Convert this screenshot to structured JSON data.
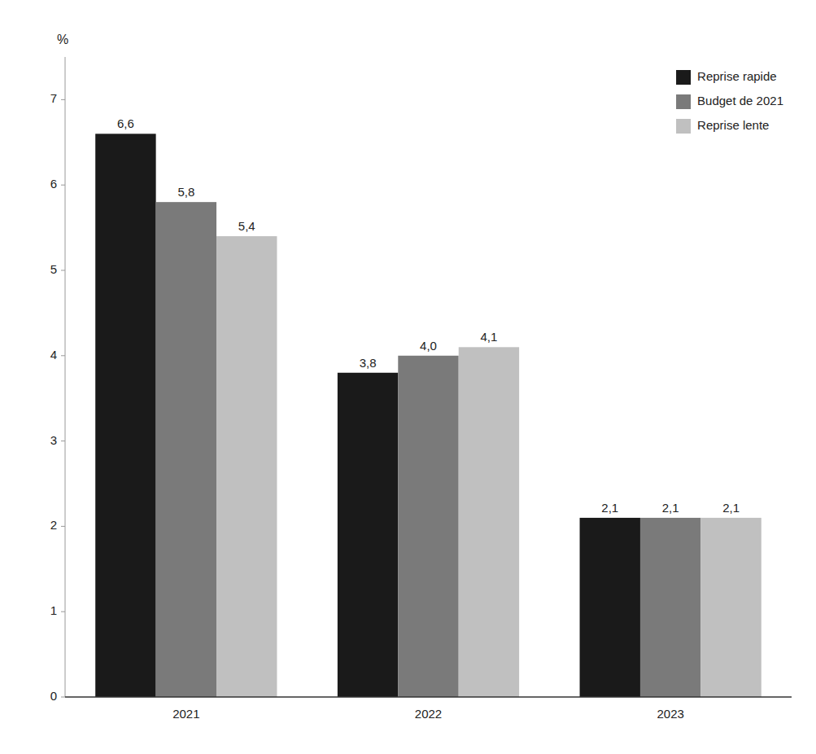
{
  "chart_data": {
    "type": "bar",
    "ylabel": "%",
    "categories": [
      "2021",
      "2022",
      "2023"
    ],
    "series": [
      {
        "name": "Reprise rapide",
        "color": "#1a1a1a",
        "values": [
          6.6,
          3.8,
          2.1
        ],
        "value_labels": [
          "6,6",
          "3,8",
          "2,1"
        ]
      },
      {
        "name": "Budget de 2021",
        "color": "#7a7a7a",
        "values": [
          5.8,
          4.0,
          2.1
        ],
        "value_labels": [
          "5,8",
          "4,0",
          "2,1"
        ]
      },
      {
        "name": "Reprise lente",
        "color": "#c0c0c0",
        "values": [
          5.4,
          4.1,
          2.1
        ],
        "value_labels": [
          "5,4",
          "4,1",
          "2,1"
        ]
      }
    ],
    "ylim": [
      0,
      7.5
    ],
    "yticks": [
      0,
      1,
      2,
      3,
      4,
      5,
      6,
      7
    ],
    "grid": false,
    "legend": "upper right",
    "data_labels": true
  }
}
